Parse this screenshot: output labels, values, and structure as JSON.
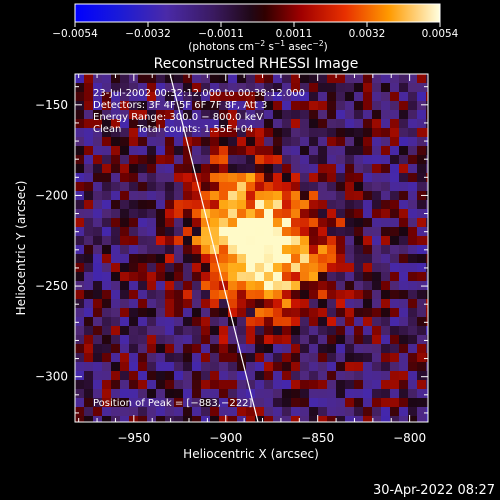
{
  "colorbar": {
    "tick_labels": [
      "−0.0054",
      "−0.0032",
      "−0.0011",
      "0.0011",
      "0.0032",
      "0.0054"
    ],
    "units_main": "(photons cm",
    "units_exp1": "−2",
    "units_mid": " s",
    "units_exp2": "−1",
    "units_mid2": " asec",
    "units_exp3": "−2",
    "units_end": ")"
  },
  "title": "Reconstructed RHESSI Image",
  "info": {
    "line1": "23-Jul-2002 00:32:12.000 to 00:38:12.000",
    "line2": "Detectors: 3F 4F 5F 6F 7F 8F, Att 3",
    "line3": "Energy Range: 300.0 − 800.0 keV",
    "line4": "Clean     Total counts: 1.55E+04",
    "peak": "Position of Peak = [−883,−222]"
  },
  "axes": {
    "xlabel": "Heliocentric X (arcsec)",
    "ylabel": "Heliocentric Y (arcsec)",
    "xticks": [
      {
        "value": -950,
        "label": "−950"
      },
      {
        "value": -900,
        "label": "−900"
      },
      {
        "value": -850,
        "label": "−850"
      },
      {
        "value": -800,
        "label": "−800"
      }
    ],
    "yticks": [
      {
        "value": -150,
        "label": "−150"
      },
      {
        "value": -200,
        "label": "−200"
      },
      {
        "value": -250,
        "label": "−250"
      },
      {
        "value": -300,
        "label": "−300"
      }
    ]
  },
  "footer": {
    "timestamp": "30-Apr-2022 08:27"
  }
}
